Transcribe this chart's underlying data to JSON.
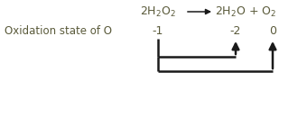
{
  "fig_width": 3.4,
  "fig_height": 1.31,
  "dpi": 100,
  "bg_color": "#ffffff",
  "text_color": "#5a5a3a",
  "arrow_color": "#1a1a1a",
  "label_left": "Oxidation state of O",
  "ox_state_h2o2": "-1",
  "ox_state_h2o": "-2",
  "ox_state_o2": "0",
  "lw": 1.8,
  "fs_eq": 9,
  "fs_label": 8.5,
  "fs_ox": 9
}
